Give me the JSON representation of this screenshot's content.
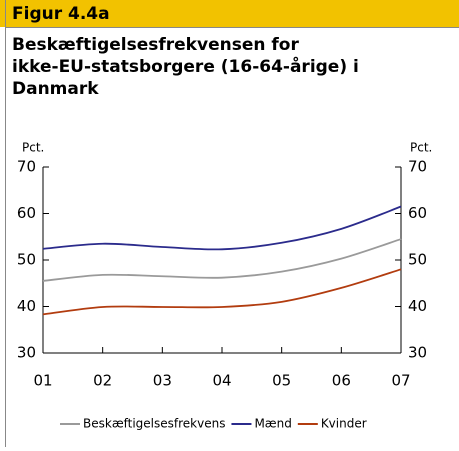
{
  "chart_data": {
    "type": "line",
    "figure_label": "Figur 4.4a",
    "title": [
      "Beskæftigelsesfrekvensen for",
      "ikke-EU-statsborgere (16-64-årige) i",
      "Danmark"
    ],
    "y_label": "Pct.",
    "y2_label": "Pct.",
    "categories": [
      "01",
      "02",
      "03",
      "04",
      "05",
      "06",
      "07"
    ],
    "series": [
      {
        "name": "Beskæftigelsesfrekvens",
        "color": "#9a9a9a",
        "values": [
          45.5,
          46.8,
          46.5,
          46.2,
          47.5,
          50.3,
          54.5
        ]
      },
      {
        "name": "Mænd",
        "color": "#2b2b8c",
        "values": [
          52.4,
          53.5,
          52.8,
          52.3,
          53.7,
          56.7,
          61.5
        ]
      },
      {
        "name": "Kvinder",
        "color": "#b23c0f",
        "values": [
          38.3,
          39.9,
          39.9,
          39.9,
          41.0,
          44.0,
          48.0
        ]
      }
    ],
    "ylim": [
      30,
      70
    ],
    "yticks": [
      30,
      40,
      50,
      60,
      70
    ],
    "y2lim": [
      30,
      70
    ],
    "y2ticks": [
      30,
      40,
      50,
      60,
      70
    ]
  }
}
